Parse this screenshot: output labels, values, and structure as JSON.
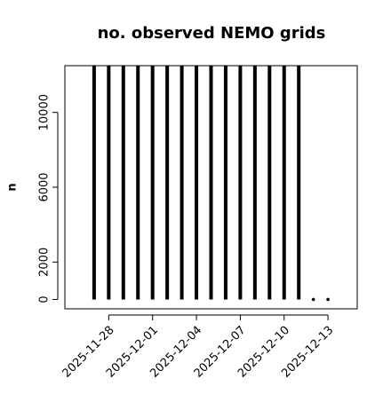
{
  "chart_data": {
    "type": "histogram-lines",
    "title": "no. observed NEMO grids",
    "y_label": "n",
    "x": [
      "2025-11-27",
      "2025-11-28",
      "2025-11-29",
      "2025-11-30",
      "2025-12-01",
      "2025-12-02",
      "2025-12-03",
      "2025-12-04",
      "2025-12-05",
      "2025-12-06",
      "2025-12-07",
      "2025-12-08",
      "2025-12-09",
      "2025-12-10",
      "2025-12-11",
      "2025-12-12",
      "2025-12-13"
    ],
    "values": [
      12500,
      12500,
      12500,
      12500,
      12500,
      12500,
      12500,
      12500,
      12500,
      12500,
      12500,
      12500,
      12500,
      12500,
      12500,
      0,
      0
    ],
    "color": "#000000",
    "xlim": [
      "2025-11-25",
      "2025-12-15"
    ],
    "xticks": [
      "2025-11-28",
      "2025-12-01",
      "2025-12-04",
      "2025-12-07",
      "2025-12-10",
      "2025-12-13"
    ],
    "ylim": [
      -500,
      12500
    ],
    "yticks": [
      0,
      2000,
      6000,
      10000
    ]
  }
}
